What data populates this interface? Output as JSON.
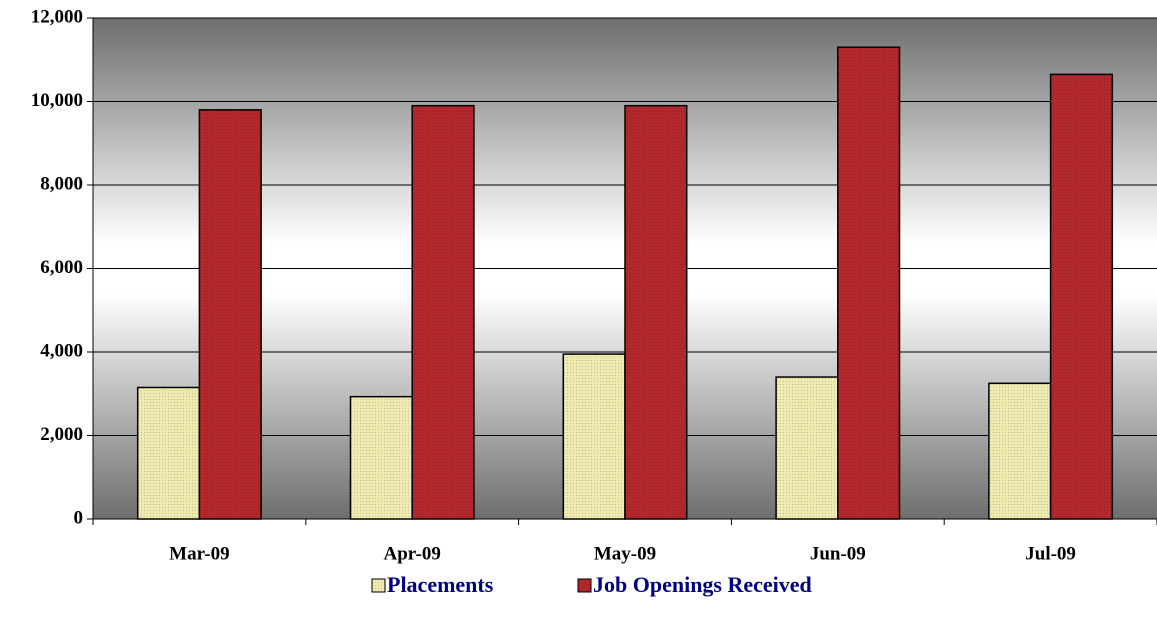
{
  "chart_data": {
    "type": "bar",
    "categories": [
      "Mar-09",
      "Apr-09",
      "May-09",
      "Jun-09",
      "Jul-09"
    ],
    "series": [
      {
        "name": "Placements",
        "color": "#efeab0",
        "values": [
          3150,
          2930,
          3950,
          3400,
          3250
        ]
      },
      {
        "name": "Job Openings Received",
        "color": "#b3282c",
        "values": [
          9800,
          9900,
          9900,
          11300,
          10650
        ]
      }
    ],
    "ylim": [
      0,
      12000
    ],
    "yticks": [
      0,
      {
        "value": 2000,
        "label": "2,000"
      },
      {
        "value": 4000,
        "label": "4,000"
      },
      {
        "value": 6000,
        "label": "6,000"
      },
      {
        "value": 8000,
        "label": "8,000"
      },
      {
        "value": 10000,
        "label": "10,000"
      },
      {
        "value": 12000,
        "label": "12,000"
      }
    ],
    "grid": true,
    "legend": "bottom"
  }
}
